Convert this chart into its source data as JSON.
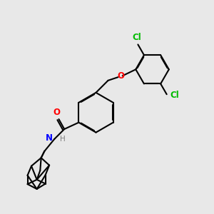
{
  "background_color": "#e8e8e8",
  "atom_colors": {
    "O": "#ff0000",
    "N": "#0000ff",
    "Cl": "#00bb00",
    "H": "#808080",
    "C": "#000000"
  },
  "line_width": 1.5,
  "font_size": 8.5
}
